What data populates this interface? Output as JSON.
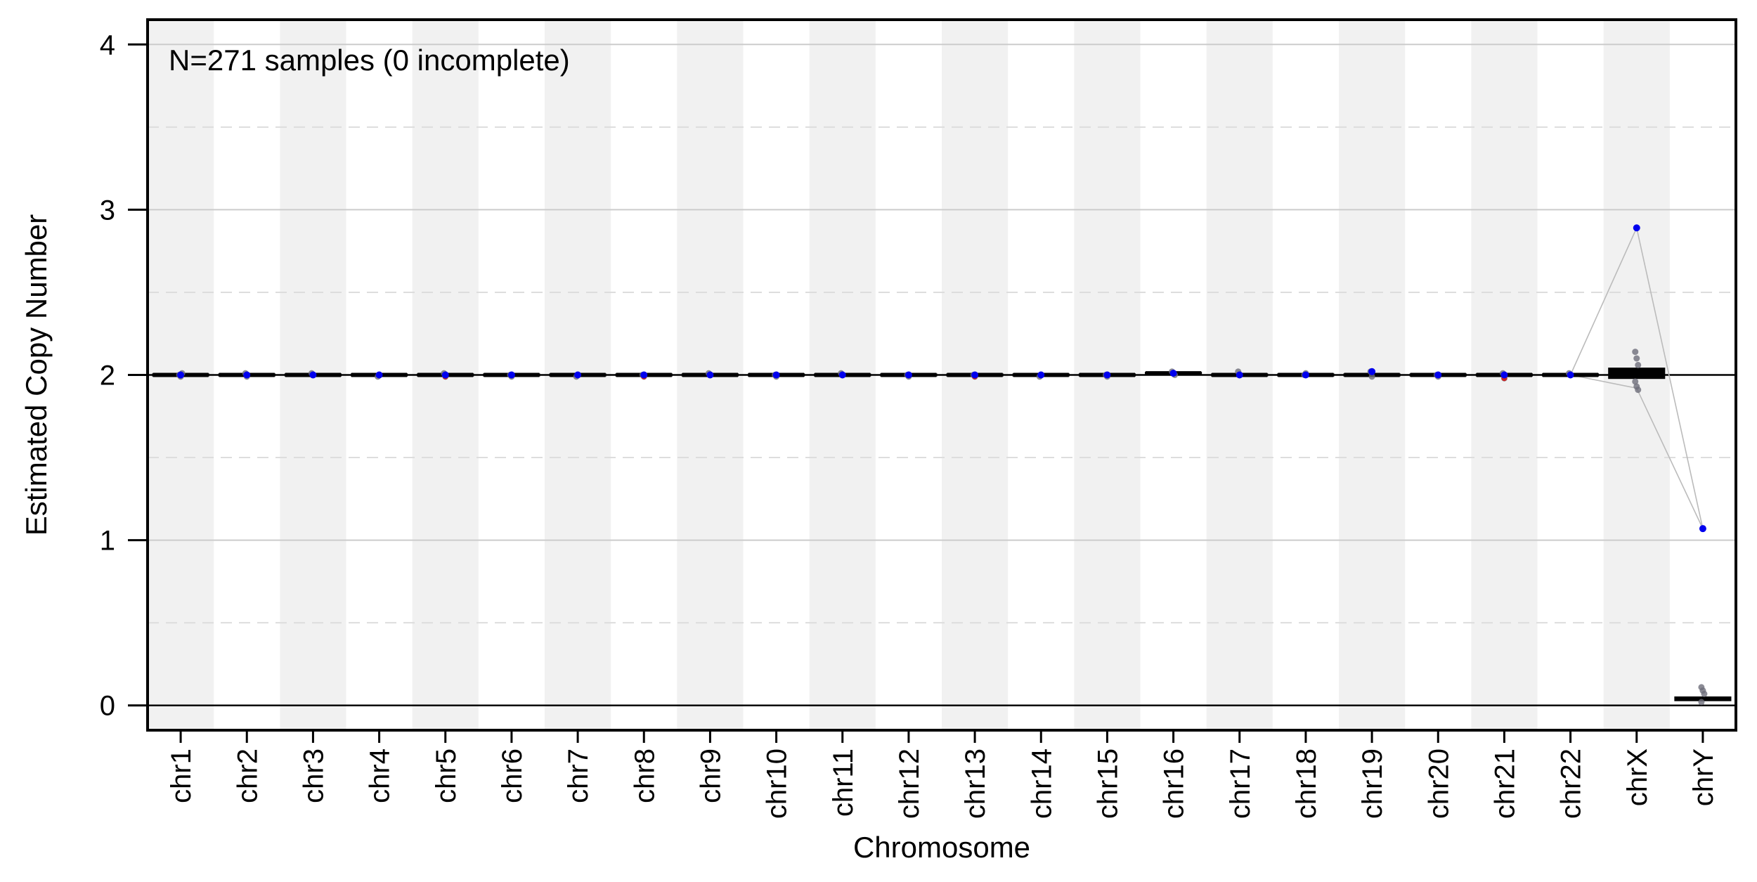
{
  "chart_data": {
    "type": "box",
    "title": "",
    "annotation": "N=271 samples (0 incomplete)",
    "xlabel": "Chromosome",
    "ylabel": "Estimated Copy Number",
    "ylim": [
      -0.15,
      4.15
    ],
    "yticks": [
      0,
      1,
      2,
      3,
      4
    ],
    "reference_lines": [
      0,
      2
    ],
    "grid": {
      "major_y": [
        1,
        3,
        4
      ],
      "minor_y": [
        0.5,
        1.5,
        2.5,
        3.5
      ],
      "alternating_column_shading": true
    },
    "colors": {
      "frame": "#000000",
      "shading": "#f1f1f1",
      "major_grid": "#cccccc",
      "minor_grid": "#dddddd",
      "points": "#6e6e7a",
      "highlight_high": "#0000ee",
      "highlight_low": "#cc2222",
      "trace": "#bbbbbb"
    },
    "categories": [
      "chr1",
      "chr2",
      "chr3",
      "chr4",
      "chr5",
      "chr6",
      "chr7",
      "chr8",
      "chr9",
      "chr10",
      "chr11",
      "chr12",
      "chr13",
      "chr14",
      "chr15",
      "chr16",
      "chr17",
      "chr18",
      "chr19",
      "chr20",
      "chr21",
      "chr22",
      "chrX",
      "chrY"
    ],
    "median": [
      2.0,
      2.0,
      2.0,
      2.0,
      2.0,
      2.0,
      2.0,
      2.0,
      2.0,
      2.0,
      2.0,
      2.0,
      2.0,
      2.0,
      2.0,
      2.01,
      2.0,
      2.0,
      2.0,
      2.0,
      2.0,
      2.0,
      2.01,
      0.04
    ],
    "q1": [
      1.995,
      1.995,
      1.995,
      1.995,
      1.995,
      1.995,
      1.995,
      1.995,
      1.995,
      1.995,
      1.995,
      1.995,
      1.995,
      1.995,
      1.995,
      2.005,
      1.995,
      1.995,
      1.995,
      1.995,
      1.995,
      1.995,
      1.98,
      0.03
    ],
    "q3": [
      2.005,
      2.005,
      2.005,
      2.005,
      2.005,
      2.005,
      2.005,
      2.005,
      2.005,
      2.005,
      2.005,
      2.005,
      2.005,
      2.005,
      2.005,
      2.015,
      2.005,
      2.005,
      2.005,
      2.005,
      2.005,
      2.005,
      2.04,
      0.05
    ],
    "points": [
      {
        "category": "chr1",
        "values": [
          2.0,
          1.99,
          2.01
        ]
      },
      {
        "category": "chr2",
        "values": [
          2.01,
          1.99
        ]
      },
      {
        "category": "chr3",
        "values": [
          2.01,
          2.0
        ]
      },
      {
        "category": "chr4",
        "values": [
          1.99,
          2.0
        ]
      },
      {
        "category": "chr5",
        "values": [
          2.01,
          1.99
        ]
      },
      {
        "category": "chr6",
        "values": [
          2.0,
          1.99
        ]
      },
      {
        "category": "chr7",
        "values": [
          1.99,
          2.0
        ]
      },
      {
        "category": "chr8",
        "values": [
          2.0,
          1.99
        ]
      },
      {
        "category": "chr9",
        "values": [
          2.01,
          2.0
        ]
      },
      {
        "category": "chr10",
        "values": [
          2.0,
          1.99
        ]
      },
      {
        "category": "chr11",
        "values": [
          2.01,
          2.0
        ]
      },
      {
        "category": "chr12",
        "values": [
          2.0,
          1.99
        ]
      },
      {
        "category": "chr13",
        "values": [
          2.0,
          1.99
        ]
      },
      {
        "category": "chr14",
        "values": [
          1.99,
          2.0
        ]
      },
      {
        "category": "chr15",
        "values": [
          2.0,
          1.99
        ]
      },
      {
        "category": "chr16",
        "values": [
          2.02,
          2.01,
          2.0
        ]
      },
      {
        "category": "chr17",
        "values": [
          2.02,
          2.0
        ]
      },
      {
        "category": "chr18",
        "values": [
          2.0,
          2.01
        ]
      },
      {
        "category": "chr19",
        "values": [
          2.02,
          1.99
        ]
      },
      {
        "category": "chr20",
        "values": [
          2.0,
          1.99
        ]
      },
      {
        "category": "chr21",
        "values": [
          2.01,
          1.98
        ]
      },
      {
        "category": "chr22",
        "values": [
          2.01,
          2.0
        ]
      },
      {
        "category": "chrX",
        "values": [
          2.14,
          2.1,
          2.06,
          1.96,
          1.93,
          1.91
        ]
      },
      {
        "category": "chrY",
        "values": [
          0.11,
          0.09,
          0.07,
          0.02
        ]
      }
    ],
    "highlighted_sample": {
      "color": "#0000ee",
      "values": [
        2.0,
        2.0,
        2.0,
        2.0,
        2.0,
        2.0,
        2.0,
        2.0,
        2.0,
        2.0,
        2.0,
        2.0,
        2.0,
        2.0,
        2.0,
        2.01,
        2.0,
        2.0,
        2.02,
        2.0,
        2.0,
        2.0,
        2.89,
        1.07
      ]
    },
    "low_outliers": [
      {
        "category": "chr5",
        "value": 1.99
      },
      {
        "category": "chr8",
        "value": 1.99
      },
      {
        "category": "chr13",
        "value": 1.99
      },
      {
        "category": "chr21",
        "value": 1.98
      }
    ],
    "traces": [
      {
        "values": [
          2.0,
          2.0,
          2.0,
          2.0,
          2.0,
          2.0,
          2.0,
          2.0,
          2.0,
          2.0,
          2.0,
          2.0,
          2.0,
          2.0,
          2.0,
          2.01,
          2.0,
          2.0,
          2.02,
          2.0,
          2.0,
          2.0,
          2.89,
          1.07
        ]
      },
      {
        "values": [
          2.0,
          2.0,
          2.0,
          2.0,
          2.0,
          2.0,
          2.0,
          2.0,
          2.0,
          2.0,
          2.0,
          2.0,
          2.0,
          2.0,
          2.0,
          2.01,
          2.0,
          2.0,
          2.0,
          2.0,
          2.0,
          2.0,
          1.92,
          1.07
        ]
      }
    ]
  }
}
